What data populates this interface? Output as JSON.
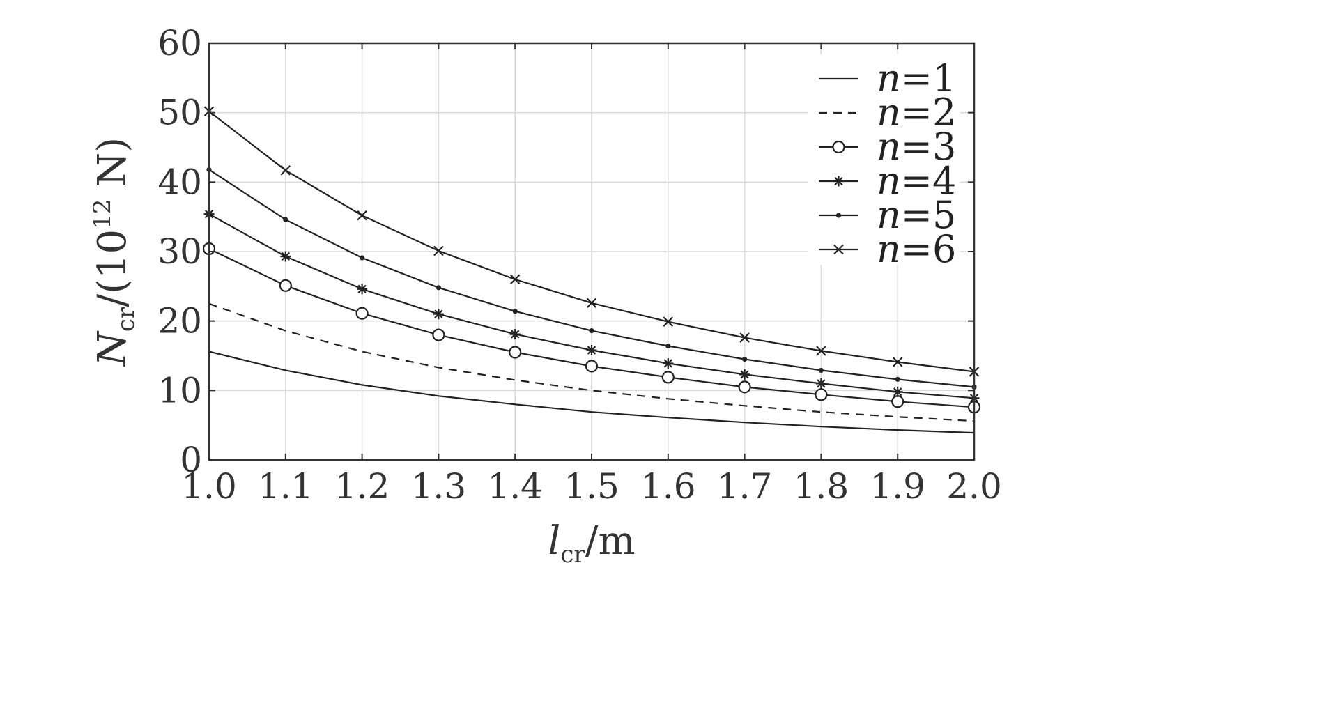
{
  "chart_data": {
    "type": "line",
    "xlabel": {
      "main": "l",
      "sub": "cr",
      "unit": "/m"
    },
    "ylabel": {
      "main": "N",
      "sub": "cr",
      "unit_pre": "/(10",
      "sup": "12",
      "unit_post": " N)"
    },
    "xlim": [
      1.0,
      2.0
    ],
    "ylim": [
      0,
      60
    ],
    "xticks": [
      "1.0",
      "1.1",
      "1.2",
      "1.3",
      "1.4",
      "1.5",
      "1.6",
      "1.7",
      "1.8",
      "1.9",
      "2.0"
    ],
    "yticks": [
      "0",
      "10",
      "20",
      "30",
      "40",
      "50",
      "60"
    ],
    "grid": true,
    "legend_position": "top-right",
    "x": [
      1.0,
      1.1,
      1.2,
      1.3,
      1.4,
      1.5,
      1.6,
      1.7,
      1.8,
      1.9,
      2.0
    ],
    "series": [
      {
        "name": "n=1",
        "line": "solid",
        "marker": "none",
        "values": [
          15.6,
          12.9,
          10.8,
          9.2,
          8.0,
          6.9,
          6.1,
          5.4,
          4.8,
          4.3,
          3.9
        ]
      },
      {
        "name": "n=2",
        "line": "dashed",
        "marker": "none",
        "values": [
          22.5,
          18.6,
          15.6,
          13.3,
          11.5,
          10.0,
          8.8,
          7.8,
          6.9,
          6.2,
          5.6
        ]
      },
      {
        "name": "n=3",
        "line": "solid",
        "marker": "circle",
        "values": [
          30.4,
          25.1,
          21.1,
          18.0,
          15.5,
          13.5,
          11.9,
          10.5,
          9.4,
          8.4,
          7.6
        ]
      },
      {
        "name": "n=4",
        "line": "solid",
        "marker": "star",
        "values": [
          35.4,
          29.3,
          24.6,
          21.0,
          18.1,
          15.8,
          13.9,
          12.3,
          11.0,
          9.8,
          8.9
        ]
      },
      {
        "name": "n=5",
        "line": "solid",
        "marker": "dot",
        "values": [
          41.8,
          34.6,
          29.1,
          24.8,
          21.4,
          18.6,
          16.4,
          14.5,
          12.9,
          11.6,
          10.5
        ]
      },
      {
        "name": "n=6",
        "line": "solid",
        "marker": "x",
        "values": [
          50.2,
          41.7,
          35.2,
          30.1,
          26.0,
          22.6,
          19.9,
          17.6,
          15.7,
          14.1,
          12.7
        ]
      }
    ]
  },
  "colors": {
    "line": "#222222",
    "grid": "#d9d9d9",
    "axis": "#333333",
    "text": "#333333"
  }
}
